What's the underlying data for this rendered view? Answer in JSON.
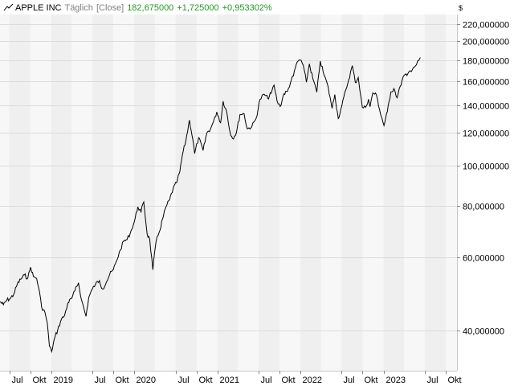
{
  "header": {
    "title": "APPLE INC",
    "interval": "Täglich",
    "mode": "[Close]",
    "last": "182,675000",
    "change": "+1,725000",
    "change_pct": "+0,953302%"
  },
  "currency_symbol": "$",
  "colors": {
    "band_light": "#f7f7f7",
    "band_dark": "#efefef",
    "line": "#000000",
    "positive": "#1f9a1f",
    "muted": "#808080"
  },
  "chart_data": {
    "type": "line",
    "title": "APPLE INC",
    "scale": "log",
    "ylim": [
      32,
      232
    ],
    "xlim": [
      "2018-05-21",
      "2023-11-20"
    ],
    "grid": true,
    "y_ticks": [
      {
        "value": 40,
        "label": "40,000000"
      },
      {
        "value": 60,
        "label": "60,000000"
      },
      {
        "value": 80,
        "label": "80,000000"
      },
      {
        "value": 100,
        "label": "100,000000"
      },
      {
        "value": 120,
        "label": "120,000000"
      },
      {
        "value": 140,
        "label": "140,000000"
      },
      {
        "value": 160,
        "label": "160,000000"
      },
      {
        "value": 180,
        "label": "180,000000"
      },
      {
        "value": 200,
        "label": "200,000000"
      },
      {
        "value": 220,
        "label": "220,000000"
      }
    ],
    "x_ticks": [
      {
        "date": "2018-07-01",
        "label": "Jul"
      },
      {
        "date": "2018-10-01",
        "label": "Okt"
      },
      {
        "date": "2019-01-01",
        "label": "2019"
      },
      {
        "date": "2019-07-01",
        "label": "Jul"
      },
      {
        "date": "2019-10-01",
        "label": "Okt"
      },
      {
        "date": "2020-01-01",
        "label": "2020"
      },
      {
        "date": "2020-07-01",
        "label": "Jul"
      },
      {
        "date": "2020-10-01",
        "label": "Okt"
      },
      {
        "date": "2021-01-01",
        "label": "2021"
      },
      {
        "date": "2021-07-01",
        "label": "Jul"
      },
      {
        "date": "2021-10-01",
        "label": "Okt"
      },
      {
        "date": "2022-01-01",
        "label": "2022"
      },
      {
        "date": "2022-07-01",
        "label": "Jul"
      },
      {
        "date": "2022-10-01",
        "label": "Okt"
      },
      {
        "date": "2023-01-01",
        "label": "2023"
      },
      {
        "date": "2023-07-01",
        "label": "Jul"
      },
      {
        "date": "2023-10-01",
        "label": "Okt"
      }
    ],
    "series": [
      {
        "points": [
          [
            "2018-05-21",
            47.0
          ],
          [
            "2018-06-05",
            46.2
          ],
          [
            "2018-06-20",
            47.4
          ],
          [
            "2018-07-05",
            47.8
          ],
          [
            "2018-07-20",
            48.9
          ],
          [
            "2018-08-05",
            51.8
          ],
          [
            "2018-08-20",
            53.2
          ],
          [
            "2018-09-05",
            54.5
          ],
          [
            "2018-09-20",
            53.6
          ],
          [
            "2018-10-03",
            56.9
          ],
          [
            "2018-10-15",
            54.0
          ],
          [
            "2018-10-29",
            53.5
          ],
          [
            "2018-11-08",
            50.5
          ],
          [
            "2018-11-20",
            45.6
          ],
          [
            "2018-12-05",
            44.2
          ],
          [
            "2018-12-15",
            41.7
          ],
          [
            "2018-12-24",
            36.7
          ],
          [
            "2019-01-03",
            35.6
          ],
          [
            "2019-01-15",
            38.2
          ],
          [
            "2019-01-30",
            40.2
          ],
          [
            "2019-02-15",
            42.6
          ],
          [
            "2019-03-01",
            43.5
          ],
          [
            "2019-03-15",
            46.6
          ],
          [
            "2019-04-01",
            47.8
          ],
          [
            "2019-04-15",
            49.9
          ],
          [
            "2019-05-01",
            52.2
          ],
          [
            "2019-05-15",
            47.3
          ],
          [
            "2019-06-03",
            43.3
          ],
          [
            "2019-06-15",
            48.1
          ],
          [
            "2019-07-01",
            50.4
          ],
          [
            "2019-07-15",
            51.8
          ],
          [
            "2019-08-01",
            52.8
          ],
          [
            "2019-08-15",
            50.4
          ],
          [
            "2019-09-01",
            52.4
          ],
          [
            "2019-09-15",
            54.6
          ],
          [
            "2019-10-01",
            56.1
          ],
          [
            "2019-10-15",
            58.9
          ],
          [
            "2019-11-01",
            62.6
          ],
          [
            "2019-11-15",
            65.7
          ],
          [
            "2019-12-01",
            66.4
          ],
          [
            "2019-12-15",
            68.9
          ],
          [
            "2020-01-02",
            73.4
          ],
          [
            "2020-01-17",
            79.6
          ],
          [
            "2020-01-31",
            77.4
          ],
          [
            "2020-02-12",
            81.8
          ],
          [
            "2020-02-27",
            68.4
          ],
          [
            "2020-03-09",
            66.5
          ],
          [
            "2020-03-23",
            56.1
          ],
          [
            "2020-04-06",
            65.6
          ],
          [
            "2020-04-20",
            69.2
          ],
          [
            "2020-05-05",
            74.4
          ],
          [
            "2020-05-20",
            79.7
          ],
          [
            "2020-06-05",
            82.9
          ],
          [
            "2020-06-20",
            88.0
          ],
          [
            "2020-07-05",
            91.0
          ],
          [
            "2020-07-20",
            97.0
          ],
          [
            "2020-07-31",
            106.3
          ],
          [
            "2020-08-15",
            115.0
          ],
          [
            "2020-08-31",
            129.0
          ],
          [
            "2020-09-15",
            115.5
          ],
          [
            "2020-09-23",
            107.1
          ],
          [
            "2020-10-10",
            117.0
          ],
          [
            "2020-10-30",
            108.9
          ],
          [
            "2020-11-15",
            120.0
          ],
          [
            "2020-12-01",
            122.7
          ],
          [
            "2020-12-15",
            127.9
          ],
          [
            "2020-12-29",
            134.9
          ],
          [
            "2021-01-15",
            127.1
          ],
          [
            "2021-01-26",
            143.2
          ],
          [
            "2021-02-10",
            135.4
          ],
          [
            "2021-02-25",
            120.9
          ],
          [
            "2021-03-08",
            116.4
          ],
          [
            "2021-03-25",
            120.1
          ],
          [
            "2021-04-10",
            133.0
          ],
          [
            "2021-04-28",
            133.6
          ],
          [
            "2021-05-12",
            122.8
          ],
          [
            "2021-06-01",
            124.3
          ],
          [
            "2021-06-20",
            130.2
          ],
          [
            "2021-07-07",
            144.6
          ],
          [
            "2021-07-25",
            148.9
          ],
          [
            "2021-08-10",
            145.6
          ],
          [
            "2021-08-25",
            149.6
          ],
          [
            "2021-09-07",
            156.7
          ],
          [
            "2021-09-20",
            143.4
          ],
          [
            "2021-10-04",
            139.1
          ],
          [
            "2021-10-20",
            149.3
          ],
          [
            "2021-11-05",
            151.3
          ],
          [
            "2021-11-22",
            161.4
          ],
          [
            "2021-12-01",
            164.8
          ],
          [
            "2021-12-13",
            175.7
          ],
          [
            "2021-12-27",
            180.3
          ],
          [
            "2022-01-04",
            179.7
          ],
          [
            "2022-01-18",
            169.8
          ],
          [
            "2022-01-27",
            159.2
          ],
          [
            "2022-02-09",
            176.3
          ],
          [
            "2022-02-24",
            162.7
          ],
          [
            "2022-03-14",
            150.6
          ],
          [
            "2022-03-29",
            178.96
          ],
          [
            "2022-04-15",
            165.3
          ],
          [
            "2022-04-29",
            157.7
          ],
          [
            "2022-05-11",
            146.5
          ],
          [
            "2022-05-20",
            137.6
          ],
          [
            "2022-06-01",
            148.7
          ],
          [
            "2022-06-16",
            130.1
          ],
          [
            "2022-07-01",
            138.9
          ],
          [
            "2022-07-20",
            153.0
          ],
          [
            "2022-08-01",
            161.5
          ],
          [
            "2022-08-17",
            174.6
          ],
          [
            "2022-08-30",
            158.9
          ],
          [
            "2022-09-12",
            163.4
          ],
          [
            "2022-09-30",
            138.2
          ],
          [
            "2022-10-14",
            138.4
          ],
          [
            "2022-10-27",
            144.8
          ],
          [
            "2022-11-03",
            138.9
          ],
          [
            "2022-11-15",
            150.0
          ],
          [
            "2022-12-01",
            148.3
          ],
          [
            "2022-12-15",
            136.5
          ],
          [
            "2023-01-03",
            125.1
          ],
          [
            "2023-01-18",
            135.2
          ],
          [
            "2023-02-02",
            150.8
          ],
          [
            "2023-02-16",
            153.7
          ],
          [
            "2023-03-02",
            145.9
          ],
          [
            "2023-03-16",
            155.9
          ],
          [
            "2023-03-31",
            164.9
          ],
          [
            "2023-04-14",
            165.2
          ],
          [
            "2023-04-28",
            169.7
          ],
          [
            "2023-05-12",
            172.6
          ],
          [
            "2023-05-26",
            175.4
          ],
          [
            "2023-06-05",
            179.6
          ],
          [
            "2023-06-12",
            182.675
          ]
        ]
      }
    ]
  }
}
